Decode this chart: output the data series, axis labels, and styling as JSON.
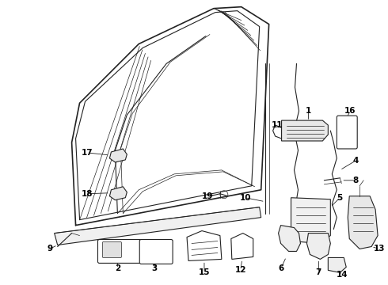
{
  "bg_color": "#ffffff",
  "line_color": "#222222",
  "label_color": "#000000",
  "label_fontsize": 7.5,
  "label_fontweight": "bold",
  "figsize": [
    4.9,
    3.6
  ],
  "dpi": 100
}
